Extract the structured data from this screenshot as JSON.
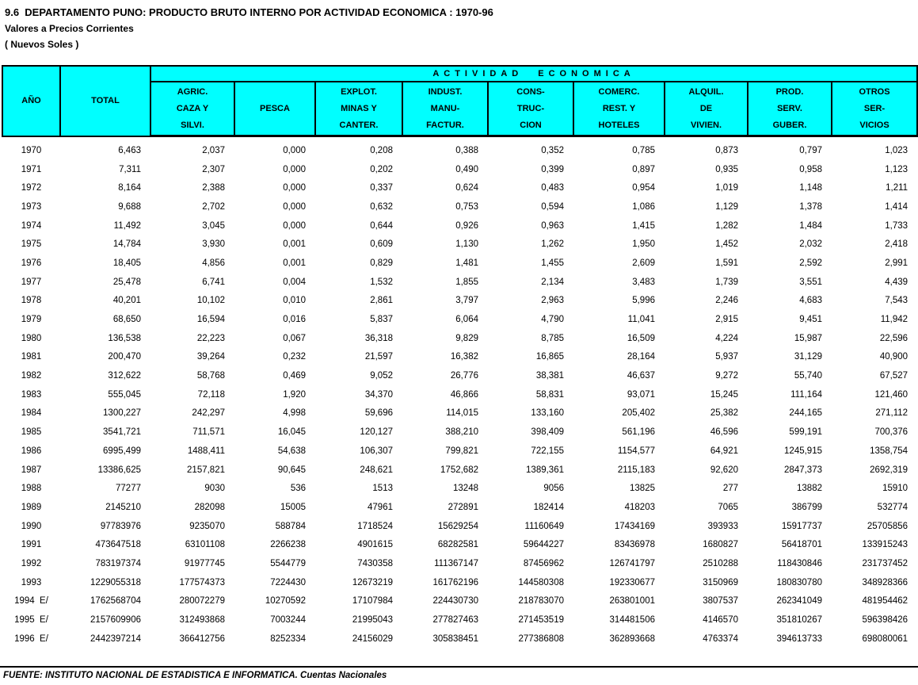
{
  "title": "9.6  DEPARTAMENTO PUNO: PRODUCTO BRUTO INTERNO POR ACTIVIDAD ECONOMICA : 1970-96",
  "subtitle1": "Valores a Precios Corrientes",
  "subtitle2": "( Nuevos Soles )",
  "colors": {
    "header_bg": "#00FFFF",
    "border": "#000000",
    "text": "#000000",
    "background": "#FFFFFF"
  },
  "table": {
    "col_ano": "AÑO",
    "col_total": "TOTAL",
    "group_header": "ACTIVIDAD  ECONOMICA",
    "activity_columns": [
      {
        "id": "agric",
        "lines": [
          "AGRIC.",
          "CAZA Y",
          "SILVI."
        ]
      },
      {
        "id": "pesca",
        "lines": [
          "PESCA"
        ]
      },
      {
        "id": "explot",
        "lines": [
          "EXPLOT.",
          "MINAS Y",
          "CANTER."
        ]
      },
      {
        "id": "indust",
        "lines": [
          "INDUST.",
          "MANU-",
          "FACTUR."
        ]
      },
      {
        "id": "constr",
        "lines": [
          "CONS-",
          "TRUC-",
          "CION"
        ]
      },
      {
        "id": "comerc",
        "lines": [
          "COMERC.",
          "REST. Y",
          "HOTELES"
        ]
      },
      {
        "id": "alquil",
        "lines": [
          "ALQUIL.",
          "DE",
          "VIVIEN."
        ]
      },
      {
        "id": "prod",
        "lines": [
          "PROD.",
          "SERV.",
          "GUBER."
        ]
      },
      {
        "id": "otros",
        "lines": [
          "OTROS",
          "SER-",
          "VICIOS"
        ]
      }
    ],
    "rows": [
      {
        "year": "1970",
        "values": [
          "6,463",
          "2,037",
          "0,000",
          "0,208",
          "0,388",
          "0,352",
          "0,785",
          "0,873",
          "0,797",
          "1,023"
        ]
      },
      {
        "year": "1971",
        "values": [
          "7,311",
          "2,307",
          "0,000",
          "0,202",
          "0,490",
          "0,399",
          "0,897",
          "0,935",
          "0,958",
          "1,123"
        ]
      },
      {
        "year": "1972",
        "values": [
          "8,164",
          "2,388",
          "0,000",
          "0,337",
          "0,624",
          "0,483",
          "0,954",
          "1,019",
          "1,148",
          "1,211"
        ]
      },
      {
        "year": "1973",
        "values": [
          "9,688",
          "2,702",
          "0,000",
          "0,632",
          "0,753",
          "0,594",
          "1,086",
          "1,129",
          "1,378",
          "1,414"
        ]
      },
      {
        "year": "1974",
        "values": [
          "11,492",
          "3,045",
          "0,000",
          "0,644",
          "0,926",
          "0,963",
          "1,415",
          "1,282",
          "1,484",
          "1,733"
        ]
      },
      {
        "year": "1975",
        "values": [
          "14,784",
          "3,930",
          "0,001",
          "0,609",
          "1,130",
          "1,262",
          "1,950",
          "1,452",
          "2,032",
          "2,418"
        ]
      },
      {
        "year": "1976",
        "values": [
          "18,405",
          "4,856",
          "0,001",
          "0,829",
          "1,481",
          "1,455",
          "2,609",
          "1,591",
          "2,592",
          "2,991"
        ]
      },
      {
        "year": "1977",
        "values": [
          "25,478",
          "6,741",
          "0,004",
          "1,532",
          "1,855",
          "2,134",
          "3,483",
          "1,739",
          "3,551",
          "4,439"
        ]
      },
      {
        "year": "1978",
        "values": [
          "40,201",
          "10,102",
          "0,010",
          "2,861",
          "3,797",
          "2,963",
          "5,996",
          "2,246",
          "4,683",
          "7,543"
        ]
      },
      {
        "year": "1979",
        "values": [
          "68,650",
          "16,594",
          "0,016",
          "5,837",
          "6,064",
          "4,790",
          "11,041",
          "2,915",
          "9,451",
          "11,942"
        ]
      },
      {
        "year": "1980",
        "values": [
          "136,538",
          "22,223",
          "0,067",
          "36,318",
          "9,829",
          "8,785",
          "16,509",
          "4,224",
          "15,987",
          "22,596"
        ]
      },
      {
        "year": "1981",
        "values": [
          "200,470",
          "39,264",
          "0,232",
          "21,597",
          "16,382",
          "16,865",
          "28,164",
          "5,937",
          "31,129",
          "40,900"
        ]
      },
      {
        "year": "1982",
        "values": [
          "312,622",
          "58,768",
          "0,469",
          "9,052",
          "26,776",
          "38,381",
          "46,637",
          "9,272",
          "55,740",
          "67,527"
        ]
      },
      {
        "year": "1983",
        "values": [
          "555,045",
          "72,118",
          "1,920",
          "34,370",
          "46,866",
          "58,831",
          "93,071",
          "15,245",
          "111,164",
          "121,460"
        ]
      },
      {
        "year": "1984",
        "values": [
          "1300,227",
          "242,297",
          "4,998",
          "59,696",
          "114,015",
          "133,160",
          "205,402",
          "25,382",
          "244,165",
          "271,112"
        ]
      },
      {
        "year": "1985",
        "values": [
          "3541,721",
          "711,571",
          "16,045",
          "120,127",
          "388,210",
          "398,409",
          "561,196",
          "46,596",
          "599,191",
          "700,376"
        ]
      },
      {
        "year": "1986",
        "values": [
          "6995,499",
          "1488,411",
          "54,638",
          "106,307",
          "799,821",
          "722,155",
          "1154,577",
          "64,921",
          "1245,915",
          "1358,754"
        ]
      },
      {
        "year": "1987",
        "values": [
          "13386,625",
          "2157,821",
          "90,645",
          "248,621",
          "1752,682",
          "1389,361",
          "2115,183",
          "92,620",
          "2847,373",
          "2692,319"
        ]
      },
      {
        "year": "1988",
        "values": [
          "77277",
          "9030",
          "536",
          "1513",
          "13248",
          "9056",
          "13825",
          "277",
          "13882",
          "15910"
        ]
      },
      {
        "year": "1989",
        "values": [
          "2145210",
          "282098",
          "15005",
          "47961",
          "272891",
          "182414",
          "418203",
          "7065",
          "386799",
          "532774"
        ]
      },
      {
        "year": "1990",
        "values": [
          "97783976",
          "9235070",
          "588784",
          "1718524",
          "15629254",
          "11160649",
          "17434169",
          "393933",
          "15917737",
          "25705856"
        ]
      },
      {
        "year": "1991",
        "values": [
          "473647518",
          "63101108",
          "2266238",
          "4901615",
          "68282581",
          "59644227",
          "83436978",
          "1680827",
          "56418701",
          "133915243"
        ]
      },
      {
        "year": "1992",
        "values": [
          "783197374",
          "91977745",
          "5544779",
          "7430358",
          "111367147",
          "87456962",
          "126741797",
          "2510288",
          "118430846",
          "231737452"
        ]
      },
      {
        "year": "1993",
        "values": [
          "1229055318",
          "177574373",
          "7224430",
          "12673219",
          "161762196",
          "144580308",
          "192330677",
          "3150969",
          "180830780",
          "348928366"
        ]
      },
      {
        "year": "1994  E/",
        "values": [
          "1762568704",
          "280072279",
          "10270592",
          "17107984",
          "224430730",
          "218783070",
          "263801001",
          "3807537",
          "262341049",
          "481954462"
        ]
      },
      {
        "year": "1995  E/",
        "values": [
          "2157609906",
          "312493868",
          "7003244",
          "21995043",
          "277827463",
          "271453519",
          "314481506",
          "4146570",
          "351810267",
          "596398426"
        ]
      },
      {
        "year": "1996  E/",
        "values": [
          "2442397214",
          "366412756",
          "8252334",
          "24156029",
          "305838451",
          "277386808",
          "362893668",
          "4763374",
          "394613733",
          "698080061"
        ]
      }
    ]
  },
  "footer": {
    "source": "FUENTE: INSTITUTO NACIONAL DE ESTADISTICA E INFORMATICA. Cuentas Nacionales"
  }
}
